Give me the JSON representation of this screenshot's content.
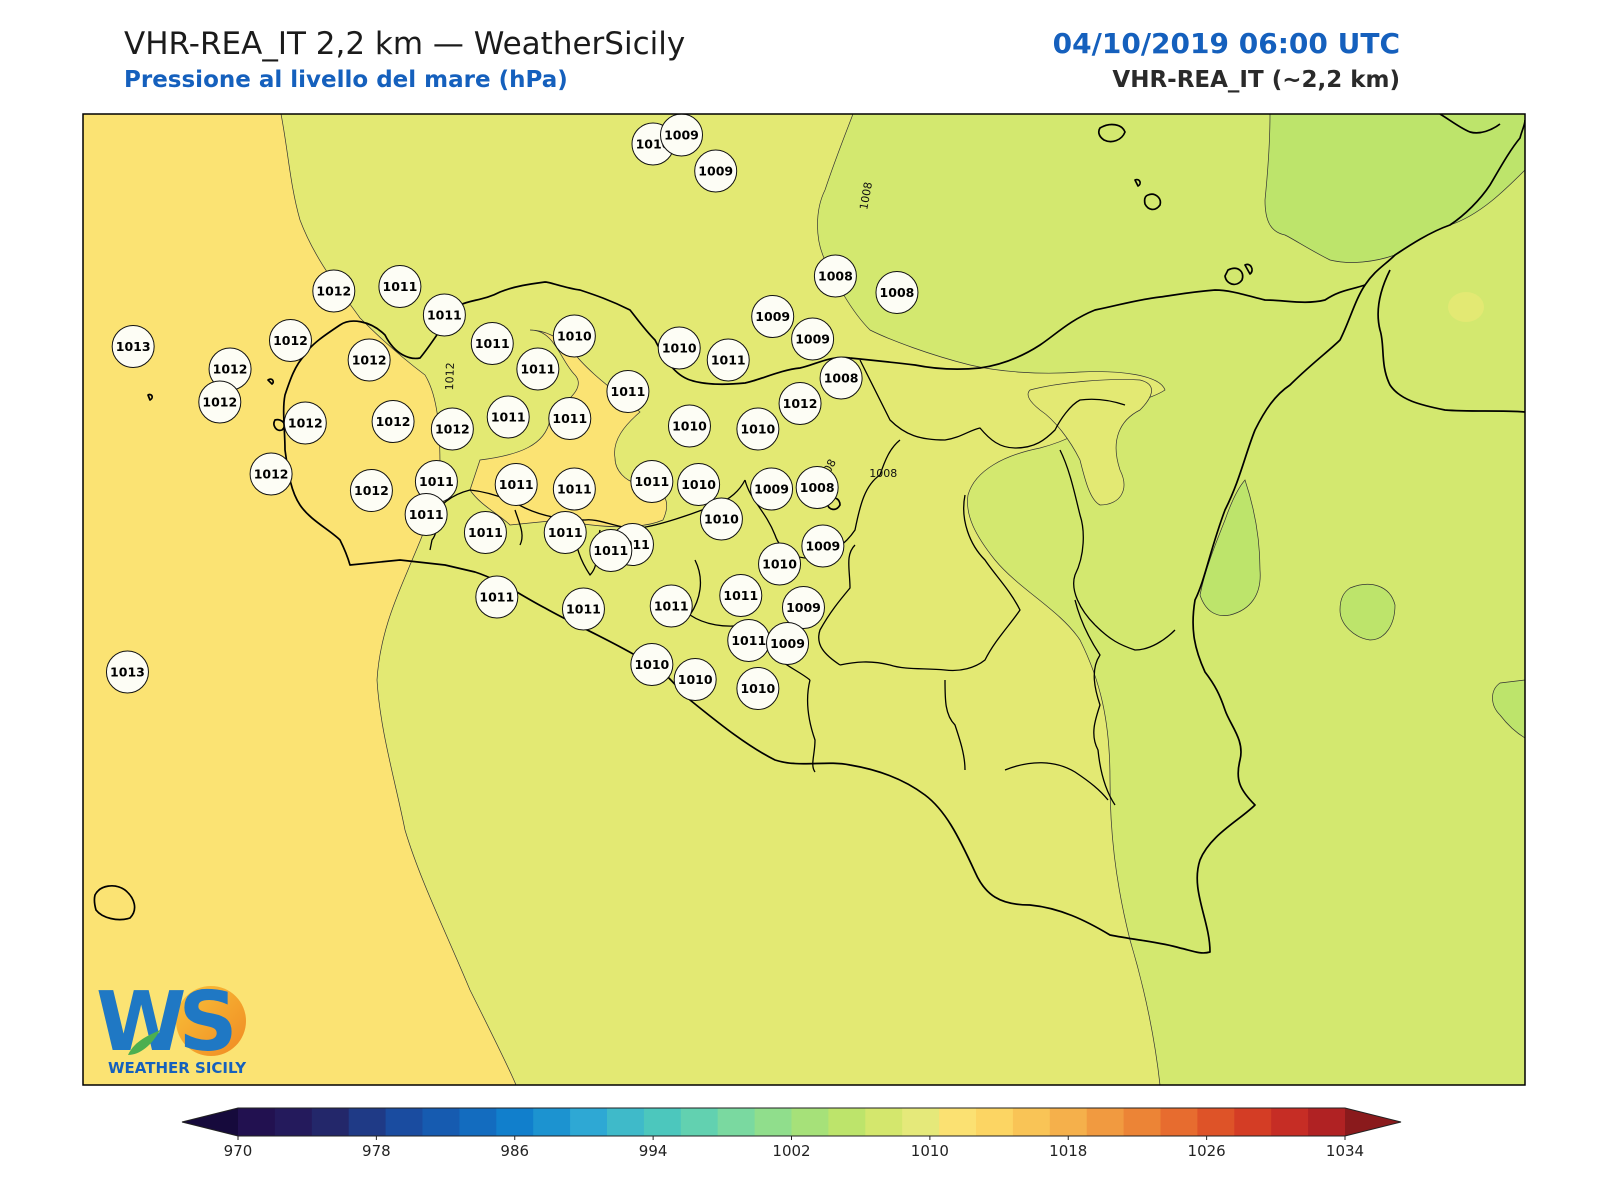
{
  "header": {
    "title": "VHR-REA_IT 2,2 km — WeatherSicily",
    "subtitle": "Pressione al livello del mare (hPa)",
    "datetime": "04/10/2019 06:00 UTC",
    "model": "VHR-REA_IT (~2,2 km)"
  },
  "map": {
    "stations": [
      {
        "v": "1010",
        "lon": 12.8,
        "lat": 39.2
      },
      {
        "v": "1009",
        "lon": 13.05,
        "lat": 39.26
      },
      {
        "v": "1009",
        "lon": 13.35,
        "lat": 39.02
      },
      {
        "v": "1012",
        "lon": 10.0,
        "lat": 38.22
      },
      {
        "v": "1011",
        "lon": 10.58,
        "lat": 38.25
      },
      {
        "v": "1011",
        "lon": 10.97,
        "lat": 38.06
      },
      {
        "v": "1013",
        "lon": 8.24,
        "lat": 37.85
      },
      {
        "v": "1012",
        "lon": 9.62,
        "lat": 37.89
      },
      {
        "v": "1012",
        "lon": 9.09,
        "lat": 37.7
      },
      {
        "v": "1012",
        "lon": 10.31,
        "lat": 37.76
      },
      {
        "v": "1011",
        "lon": 11.39,
        "lat": 37.87
      },
      {
        "v": "1010",
        "lon": 12.11,
        "lat": 37.92
      },
      {
        "v": "1011",
        "lon": 11.79,
        "lat": 37.7
      },
      {
        "v": "1010",
        "lon": 13.03,
        "lat": 37.84
      },
      {
        "v": "1011",
        "lon": 13.46,
        "lat": 37.76
      },
      {
        "v": "1009",
        "lon": 13.85,
        "lat": 38.05
      },
      {
        "v": "1009",
        "lon": 14.2,
        "lat": 37.9
      },
      {
        "v": "1008",
        "lon": 14.4,
        "lat": 38.32
      },
      {
        "v": "1008",
        "lon": 14.94,
        "lat": 38.21
      },
      {
        "v": "1012",
        "lon": 9.0,
        "lat": 37.48
      },
      {
        "v": "1012",
        "lon": 9.75,
        "lat": 37.34
      },
      {
        "v": "1012",
        "lon": 10.52,
        "lat": 37.35
      },
      {
        "v": "1012",
        "lon": 11.04,
        "lat": 37.3
      },
      {
        "v": "1011",
        "lon": 11.53,
        "lat": 37.38
      },
      {
        "v": "1011",
        "lon": 12.07,
        "lat": 37.37
      },
      {
        "v": "1011",
        "lon": 12.58,
        "lat": 37.55
      },
      {
        "v": "1010",
        "lon": 13.12,
        "lat": 37.32
      },
      {
        "v": "1010",
        "lon": 13.72,
        "lat": 37.3
      },
      {
        "v": "1012",
        "lon": 14.09,
        "lat": 37.47
      },
      {
        "v": "1008",
        "lon": 14.45,
        "lat": 37.64
      },
      {
        "v": "1012",
        "lon": 9.45,
        "lat": 37.0
      },
      {
        "v": "1012",
        "lon": 10.33,
        "lat": 36.89
      },
      {
        "v": "1011",
        "lon": 10.9,
        "lat": 36.95
      },
      {
        "v": "1011",
        "lon": 11.6,
        "lat": 36.93
      },
      {
        "v": "1011",
        "lon": 12.11,
        "lat": 36.9
      },
      {
        "v": "1011",
        "lon": 12.79,
        "lat": 36.95
      },
      {
        "v": "1010",
        "lon": 13.2,
        "lat": 36.93
      },
      {
        "v": "1009",
        "lon": 13.84,
        "lat": 36.9
      },
      {
        "v": "1008",
        "lon": 14.24,
        "lat": 36.91
      },
      {
        "v": "1011",
        "lon": 10.81,
        "lat": 36.73
      },
      {
        "v": "1011",
        "lon": 11.33,
        "lat": 36.61
      },
      {
        "v": "1011",
        "lon": 12.03,
        "lat": 36.61
      },
      {
        "v": "1011",
        "lon": 12.62,
        "lat": 36.53
      },
      {
        "v": "1011",
        "lon": 12.43,
        "lat": 36.49
      },
      {
        "v": "1010",
        "lon": 13.4,
        "lat": 36.7
      },
      {
        "v": "1009",
        "lon": 14.29,
        "lat": 36.52
      },
      {
        "v": "1010",
        "lon": 13.91,
        "lat": 36.4
      },
      {
        "v": "1011",
        "lon": 11.43,
        "lat": 36.18
      },
      {
        "v": "1011",
        "lon": 12.19,
        "lat": 36.1
      },
      {
        "v": "1011",
        "lon": 12.96,
        "lat": 36.12
      },
      {
        "v": "1011",
        "lon": 13.57,
        "lat": 36.19
      },
      {
        "v": "1009",
        "lon": 14.12,
        "lat": 36.11
      },
      {
        "v": "1011",
        "lon": 13.64,
        "lat": 35.89
      },
      {
        "v": "1009",
        "lon": 13.98,
        "lat": 35.87
      },
      {
        "v": "1010",
        "lon": 12.79,
        "lat": 35.73
      },
      {
        "v": "1010",
        "lon": 13.17,
        "lat": 35.63
      },
      {
        "v": "1010",
        "lon": 13.72,
        "lat": 35.57
      },
      {
        "v": "1013",
        "lon": 8.19,
        "lat": 35.68
      }
    ],
    "contour_labels": [
      {
        "v": "1012",
        "lon": 11.05,
        "lat": 37.65
      },
      {
        "v": "1008",
        "lon": 14.7,
        "lat": 38.85
      },
      {
        "v": "1008",
        "lon": 14.35,
        "lat": 37.0
      },
      {
        "v": "1008",
        "lon": 14.82,
        "lat": 36.98
      }
    ],
    "logo_text": "WEATHER SICILY",
    "logo_letters": "WS"
  },
  "colorbar": {
    "levels_min": 970,
    "levels_max": 1034,
    "step": 2,
    "tick_labels": [
      "970",
      "978",
      "986",
      "994",
      "1002",
      "1010",
      "1018",
      "1026",
      "1034"
    ],
    "colors": [
      "#221150",
      "#241a5c",
      "#23276a",
      "#1f3a86",
      "#1a4ca0",
      "#165bb0",
      "#136cbf",
      "#117fcc",
      "#1c93d0",
      "#2ea8d4",
      "#3fbac9",
      "#4cc7bd",
      "#62d1b0",
      "#7ad9a0",
      "#90de8c",
      "#a6e179",
      "#bde46b",
      "#d4e76d",
      "#e5e97a",
      "#fbe172",
      "#fcd563",
      "#f9c456",
      "#f5b04b",
      "#f19a40",
      "#ec8436",
      "#e76c2f",
      "#de5328",
      "#d43d25",
      "#c62d25",
      "#b02223"
    ],
    "under_color": "#160a3c",
    "over_color": "#8a1a1c"
  }
}
